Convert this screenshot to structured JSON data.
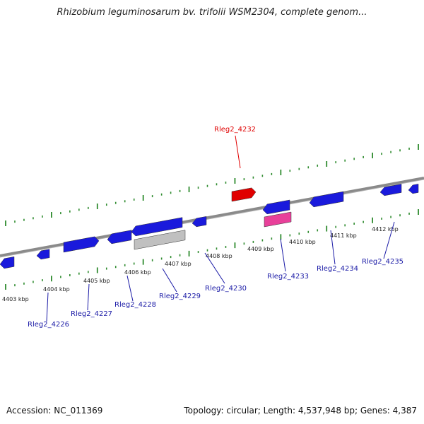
{
  "title": "Rhizobium leguminosarum bv. trifolii WSM2304, complete genom...",
  "footer": {
    "accession": "Accession: NC_011369",
    "stats": "Topology: circular; Length: 4,537,948 bp; Genes: 4,387"
  },
  "colors": {
    "background": "#ffffff",
    "backbone": "#8a8a8a",
    "tick": "#2e8b2e",
    "cds": "#1a1adc",
    "highlight_cds": "#e00000",
    "rna": "#e8409a",
    "pseudo": "#c0c0c0",
    "label_default": "#1a1aa6",
    "label_highlight": "#e00000"
  },
  "scale": {
    "unit": "kbp",
    "tick_labels": [
      "4403 kbp",
      "4404 kbp",
      "4405 kbp",
      "4406 kbp",
      "4407 kbp",
      "4408 kbp",
      "4409 kbp",
      "4410 kbp",
      "4411 kbp",
      "4412 kbp"
    ]
  },
  "gene_labels": [
    {
      "name": "Rleg2_4226",
      "highlight": false
    },
    {
      "name": "Rleg2_4227",
      "highlight": false
    },
    {
      "name": "Rleg2_4228",
      "highlight": false
    },
    {
      "name": "Rleg2_4229",
      "highlight": false
    },
    {
      "name": "Rleg2_4230",
      "highlight": false
    },
    {
      "name": "Rleg2_4232",
      "highlight": true
    },
    {
      "name": "Rleg2_4233",
      "highlight": false
    },
    {
      "name": "Rleg2_4234",
      "highlight": false
    },
    {
      "name": "Rleg2_4235",
      "highlight": false
    }
  ]
}
